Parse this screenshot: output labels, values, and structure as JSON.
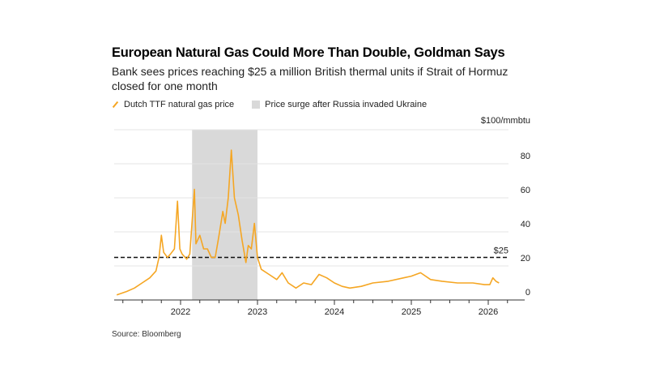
{
  "title": "European Natural Gas Could More Than Double, Goldman Says",
  "subtitle": "Bank sees prices reaching $25 a million British thermal units if Strait of Hormuz closed for one month",
  "source": "Source: Bloomberg",
  "chart_data": {
    "type": "line",
    "title": "European Natural Gas Could More Than Double, Goldman Says",
    "subtitle": "Bank sees prices reaching $25 a million British thermal units if Strait of Hormuz closed for one month",
    "ylabel": "$100/mmbtu",
    "ylim": [
      0,
      100
    ],
    "yticks": [
      "0",
      "20",
      "40",
      "60",
      "80"
    ],
    "xticks": [
      "2022",
      "2023",
      "2024",
      "2025",
      "2026"
    ],
    "grid": true,
    "legend": "top-left",
    "series": [
      {
        "name": "Dutch TTF natural gas price",
        "color": "#f5a623",
        "x": [
          2021.17,
          2021.3,
          2021.4,
          2021.5,
          2021.6,
          2021.68,
          2021.72,
          2021.75,
          2021.78,
          2021.83,
          2021.87,
          2021.92,
          2021.96,
          2021.99,
          2022.02,
          2022.08,
          2022.12,
          2022.18,
          2022.2,
          2022.25,
          2022.3,
          2022.35,
          2022.4,
          2022.45,
          2022.5,
          2022.55,
          2022.58,
          2022.62,
          2022.66,
          2022.7,
          2022.75,
          2022.8,
          2022.85,
          2022.88,
          2022.92,
          2022.96,
          2023.0,
          2023.05,
          2023.15,
          2023.25,
          2023.32,
          2023.4,
          2023.5,
          2023.6,
          2023.7,
          2023.8,
          2023.9,
          2024.0,
          2024.1,
          2024.2,
          2024.35,
          2024.5,
          2024.7,
          2024.9,
          2025.0,
          2025.12,
          2025.25,
          2025.4,
          2025.6,
          2025.8,
          2025.95,
          2026.02,
          2026.06,
          2026.1,
          2026.14
        ],
        "values": [
          3,
          5,
          7,
          10,
          13,
          17,
          25,
          38,
          28,
          25,
          27,
          30,
          58,
          30,
          27,
          24,
          27,
          65,
          33,
          38,
          30,
          30,
          25,
          25,
          38,
          52,
          45,
          60,
          88,
          60,
          50,
          35,
          22,
          32,
          30,
          45,
          25,
          18,
          15,
          12,
          16,
          10,
          7,
          10,
          9,
          15,
          13,
          10,
          8,
          7,
          8,
          10,
          11,
          13,
          14,
          16,
          12,
          11,
          10,
          10,
          9,
          9,
          13,
          11,
          10
        ]
      }
    ],
    "shaded_region": {
      "label": "Price surge after Russia invaded Ukraine",
      "from": 2022.15,
      "to": 2023.0,
      "color": "#d9d9d9"
    },
    "reference_line": {
      "label": "$25",
      "value": 25
    }
  }
}
